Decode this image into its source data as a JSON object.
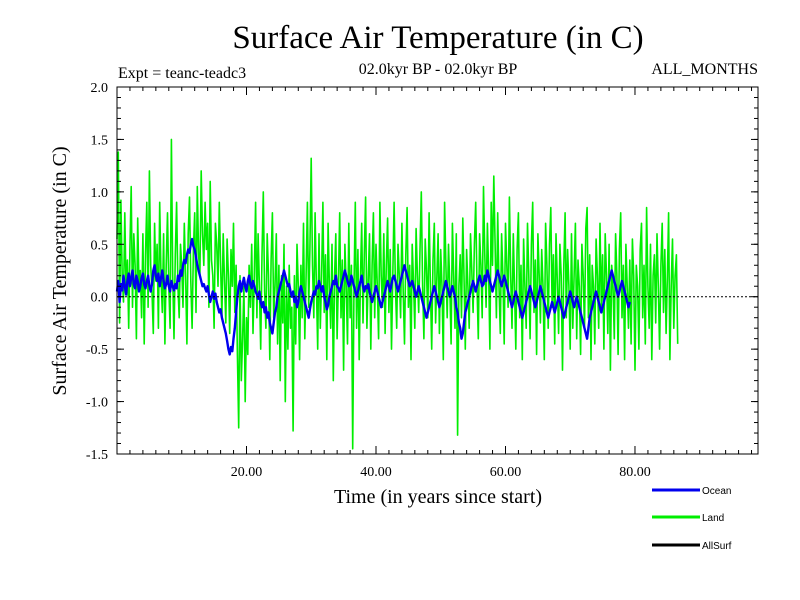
{
  "chart_data": {
    "type": "line",
    "title": "Surface Air Temperature (in C)",
    "subtitle_left": "Expt = teanc-teadc3",
    "subtitle_center": "02.0kyr BP - 02.0kyr BP",
    "subtitle_right": "ALL_MONTHS",
    "xlabel": "Time (in years since start)",
    "ylabel": "Surface Air Temperature (in C)",
    "xlim": [
      0,
      99
    ],
    "ylim": [
      -1.5,
      2.0
    ],
    "x_ticks": [
      20,
      40,
      60,
      80
    ],
    "x_tick_labels": [
      "20.00",
      "40.00",
      "60.00",
      "80.00"
    ],
    "y_ticks": [
      -1.5,
      -1.0,
      -0.5,
      0.0,
      0.5,
      1.0,
      1.5,
      2.0
    ],
    "y_tick_labels": [
      "-1.5",
      "-1.0",
      "-0.5",
      "0.0",
      "0.5",
      "1.0",
      "1.5",
      "2.0"
    ],
    "reference_line": 0.0,
    "series": [
      {
        "name": "Land",
        "color": "#00ee00",
        "x_start": 0.0,
        "x_step": 0.2,
        "values": [
          0.55,
          1.38,
          -0.25,
          0.92,
          0.2,
          -0.05,
          0.8,
          0.05,
          0.35,
          -0.3,
          0.45,
          1.05,
          -0.1,
          0.6,
          0.3,
          -0.4,
          0.75,
          0.1,
          0.25,
          -0.2,
          0.6,
          -0.45,
          0.4,
          0.9,
          -0.1,
          1.2,
          0.3,
          0.05,
          -0.35,
          0.7,
          0.15,
          0.5,
          -0.3,
          0.9,
          0.2,
          -0.15,
          0.6,
          -0.45,
          0.3,
          0.8,
          0.1,
          -0.3,
          1.5,
          0.2,
          -0.4,
          0.4,
          0.9,
          0.1,
          -0.2,
          0.5,
          0.3,
          -0.1,
          0.7,
          0.2,
          -0.45,
          0.6,
          0.95,
          0.15,
          -0.3,
          0.45,
          0.8,
          -0.15,
          1.05,
          0.4,
          0.2,
          1.2,
          0.6,
          0.3,
          0.9,
          0.45,
          0.7,
          -0.1,
          1.1,
          0.35,
          0.2,
          -0.3,
          0.7,
          0.5,
          0.1,
          0.9,
          0.3,
          -0.2,
          0.6,
          0.15,
          -0.25,
          0.55,
          0.2,
          -0.35,
          0.45,
          0.1,
          0.7,
          -0.15,
          0.3,
          -0.55,
          -1.25,
          0.2,
          -0.8,
          -0.4,
          0.1,
          -1.0,
          -0.2,
          -0.55,
          0.3,
          -0.1,
          0.5,
          -0.35,
          0.2,
          0.9,
          -0.2,
          0.6,
          0.1,
          -0.5,
          0.4,
          1.0,
          0.05,
          -0.3,
          0.6,
          0.2,
          -0.6,
          0.35,
          0.8,
          -0.2,
          0.1,
          0.6,
          -0.45,
          0.3,
          -0.8,
          0.2,
          -0.25,
          0.5,
          -1.0,
          0.1,
          -0.5,
          0.3,
          -0.3,
          -0.1,
          -1.28,
          0.2,
          -0.45,
          0.5,
          0.1,
          -0.6,
          0.3,
          -0.2,
          0.7,
          -0.4,
          0.2,
          0.9,
          -0.1,
          0.45,
          1.32,
          0.3,
          -0.2,
          0.8,
          0.1,
          -0.5,
          0.6,
          -0.3,
          0.2,
          0.9,
          -0.15,
          0.4,
          -0.6,
          0.7,
          0.1,
          -0.3,
          0.5,
          -0.8,
          0.2,
          0.6,
          -0.4,
          0.15,
          0.8,
          -0.2,
          0.35,
          -0.7,
          0.5,
          0.1,
          -0.45,
          0.7,
          -0.2,
          0.3,
          -1.45,
          0.1,
          0.9,
          -0.3,
          0.45,
          -0.6,
          0.2,
          0.7,
          -0.25,
          0.4,
          0.95,
          -0.3,
          0.15,
          0.6,
          -0.5,
          0.3,
          0.8,
          -0.2,
          0.5,
          0.1,
          -0.4,
          0.9,
          0.2,
          -0.1,
          0.6,
          -0.35,
          0.3,
          0.75,
          -0.15,
          0.45,
          -0.5,
          0.2,
          0.9,
          0.1,
          -0.3,
          0.5,
          0.2,
          -0.2,
          0.7,
          0.05,
          -0.45,
          0.4,
          0.85,
          -0.1,
          0.3,
          -0.6,
          0.5,
          0.15,
          -0.3,
          0.65,
          0.2,
          -0.15,
          0.45,
          1.0,
          0.1,
          -0.4,
          0.55,
          0.25,
          -0.2,
          0.8,
          0.1,
          -0.5,
          0.35,
          0.7,
          -0.25,
          0.2,
          0.6,
          -0.35,
          0.45,
          0.1,
          -0.6,
          0.9,
          0.3,
          -0.2,
          0.5,
          0.1,
          -0.45,
          0.7,
          0.2,
          -0.3,
          0.6,
          -1.32,
          0.1,
          0.4,
          -0.2,
          0.75,
          0.2,
          -0.5,
          0.45,
          0.1,
          -0.3,
          0.6,
          0.25,
          -0.15,
          0.5,
          0.9,
          0.1,
          -0.4,
          0.6,
          0.3,
          -0.2,
          1.05,
          0.4,
          -0.1,
          0.7,
          0.2,
          -0.5,
          0.9,
          0.3,
          1.15,
          0.5,
          -0.2,
          0.8,
          0.1,
          -0.35,
          0.6,
          0.2,
          -0.45,
          0.7,
          0.3,
          -0.1,
          0.95,
          0.2,
          -0.3,
          0.6,
          0.1,
          -0.5,
          0.45,
          0.8,
          -0.2,
          0.3,
          -0.6,
          0.55,
          0.1,
          -0.3,
          0.7,
          0.2,
          -0.4,
          0.5,
          0.9,
          -0.15,
          0.35,
          -0.55,
          0.6,
          0.2,
          -0.25,
          0.45,
          0.1,
          -0.6,
          0.7,
          0.3,
          -0.3,
          0.5,
          0.85,
          -0.1,
          0.4,
          -0.45,
          0.6,
          0.15,
          -0.35,
          0.5,
          0.2,
          -0.7,
          0.3,
          0.8,
          -0.2,
          0.45,
          0.1,
          -0.5,
          0.6,
          -0.3,
          0.2,
          0.7,
          -0.4,
          0.35,
          0.1,
          -0.55,
          0.5,
          0.2,
          -0.3,
          0.65,
          0.85,
          -0.2,
          0.4,
          -0.6,
          0.3,
          0.1,
          -0.45,
          0.55,
          0.2,
          -0.3,
          0.7,
          -0.1,
          0.4,
          -0.5,
          0.6,
          0.2,
          -0.35,
          0.5,
          -0.7,
          0.3,
          0.1,
          -0.4,
          0.6,
          0.2,
          -0.55,
          0.45,
          0.8,
          -0.2,
          0.3,
          -0.6,
          0.5,
          0.1,
          -0.3,
          0.35,
          -0.45,
          0.55,
          0.2,
          -0.7,
          0.3,
          0.1,
          -0.5,
          0.45,
          0.7,
          -0.2,
          0.3,
          -0.45,
          0.85,
          0.1,
          -0.3,
          0.5,
          -0.6,
          0.2,
          0.4,
          -0.25,
          0.6,
          0.1,
          -0.5,
          0.3,
          0.7,
          -0.15,
          0.45,
          -0.35,
          0.2,
          0.8,
          -0.6,
          0.1,
          0.55,
          -0.3,
          0.2,
          0.4,
          -0.45
        ]
      },
      {
        "name": "Ocean",
        "color": "#0000ee",
        "x_start": 0.0,
        "x_step": 0.2,
        "values": [
          0.05,
          0.15,
          -0.05,
          0.12,
          0.06,
          0.2,
          0.1,
          0.02,
          0.15,
          0.22,
          0.1,
          0.18,
          0.25,
          0.12,
          0.08,
          0.2,
          0.15,
          0.05,
          0.1,
          0.18,
          0.22,
          0.12,
          0.08,
          0.15,
          0.2,
          0.1,
          0.05,
          0.12,
          0.25,
          0.3,
          0.2,
          0.15,
          0.22,
          0.1,
          0.18,
          0.25,
          0.15,
          0.08,
          0.12,
          0.2,
          0.1,
          0.05,
          0.15,
          0.1,
          0.06,
          0.12,
          0.08,
          0.2,
          0.15,
          0.25,
          0.2,
          0.3,
          0.35,
          0.32,
          0.4,
          0.45,
          0.42,
          0.5,
          0.55,
          0.48,
          0.45,
          0.38,
          0.3,
          0.25,
          0.2,
          0.15,
          0.1,
          0.12,
          0.08,
          0.05,
          0.1,
          0.02,
          -0.05,
          0.0,
          0.05,
          -0.02,
          0.03,
          -0.05,
          -0.1,
          -0.15,
          -0.12,
          -0.2,
          -0.25,
          -0.3,
          -0.35,
          -0.42,
          -0.5,
          -0.55,
          -0.48,
          -0.52,
          -0.4,
          -0.3,
          -0.15,
          0.0,
          0.1,
          0.15,
          0.05,
          0.12,
          0.18,
          0.1,
          0.05,
          0.15,
          0.2,
          0.12,
          0.08,
          0.15,
          0.1,
          0.05,
          0.02,
          -0.02,
          0.05,
          -0.05,
          -0.1,
          -0.05,
          -0.15,
          -0.1,
          -0.2,
          -0.15,
          -0.25,
          -0.3,
          -0.35,
          -0.25,
          -0.15,
          -0.1,
          0.0,
          0.05,
          0.1,
          0.15,
          0.2,
          0.25,
          0.2,
          0.15,
          0.1,
          0.12,
          0.05,
          0.0,
          0.05,
          -0.05,
          0.0,
          -0.1,
          -0.05,
          0.05,
          0.1,
          0.05,
          0.0,
          -0.05,
          -0.1,
          -0.15,
          -0.2,
          -0.12,
          -0.05,
          0.0,
          0.05,
          0.02,
          0.1,
          0.08,
          0.15,
          0.1,
          0.05,
          0.1,
          0.0,
          -0.05,
          -0.12,
          -0.08,
          0.0,
          0.05,
          0.1,
          0.15,
          0.12,
          0.2,
          0.1,
          0.08,
          0.05,
          0.1,
          0.15,
          0.2,
          0.25,
          0.2,
          0.15,
          0.1,
          0.12,
          0.2,
          0.15,
          0.1,
          0.05,
          0.0,
          0.05,
          0.1,
          0.15,
          0.2,
          0.1,
          0.05,
          0.1,
          0.08,
          0.12,
          0.05,
          0.0,
          -0.05,
          0.0,
          0.05,
          0.1,
          0.05,
          0.0,
          -0.05,
          -0.1,
          -0.05,
          0.0,
          0.05,
          0.1,
          0.15,
          0.1,
          0.05,
          0.12,
          0.18,
          0.2,
          0.15,
          0.1,
          0.05,
          0.1,
          0.15,
          0.2,
          0.25,
          0.3,
          0.25,
          0.2,
          0.15,
          0.1,
          0.12,
          0.15,
          0.1,
          0.05,
          0.0,
          0.05,
          0.1,
          0.05,
          0.0,
          -0.05,
          -0.1,
          -0.15,
          -0.2,
          -0.15,
          -0.1,
          -0.05,
          0.0,
          0.05,
          0.1,
          0.05,
          0.0,
          -0.05,
          -0.1,
          -0.05,
          0.0,
          0.05,
          0.1,
          0.15,
          0.1,
          0.05,
          0.0,
          0.05,
          0.1,
          0.05,
          0.0,
          -0.1,
          -0.15,
          -0.25,
          -0.3,
          -0.4,
          -0.35,
          -0.25,
          -0.15,
          -0.1,
          -0.05,
          0.0,
          0.05,
          0.1,
          0.15,
          0.1,
          0.05,
          0.1,
          0.15,
          0.2,
          0.15,
          0.1,
          0.12,
          0.2,
          0.15,
          0.25,
          0.2,
          0.15,
          0.1,
          0.05,
          0.1,
          0.15,
          0.2,
          0.25,
          0.2,
          0.15,
          0.1,
          0.15,
          0.2,
          0.15,
          0.1,
          0.05,
          0.0,
          -0.05,
          -0.1,
          -0.05,
          0.0,
          0.05,
          0.0,
          -0.05,
          -0.1,
          -0.15,
          -0.2,
          -0.15,
          -0.1,
          -0.05,
          0.0,
          0.05,
          0.1,
          0.05,
          0.0,
          -0.05,
          -0.1,
          -0.05,
          0.0,
          0.05,
          0.1,
          0.05,
          0.0,
          -0.05,
          -0.1,
          -0.15,
          -0.2,
          -0.15,
          -0.1,
          -0.05,
          -0.1,
          -0.15,
          -0.1,
          -0.05,
          0.0,
          -0.05,
          -0.1,
          -0.15,
          -0.2,
          -0.15,
          -0.1,
          -0.05,
          0.0,
          0.05,
          0.0,
          -0.05,
          -0.1,
          -0.05,
          0.0,
          -0.05,
          -0.1,
          -0.15,
          -0.2,
          -0.25,
          -0.3,
          -0.35,
          -0.4,
          -0.3,
          -0.2,
          -0.15,
          -0.1,
          -0.05,
          0.0,
          0.05,
          0.0,
          -0.05,
          -0.1,
          -0.15,
          -0.1,
          -0.05,
          0.0,
          0.05,
          0.1,
          0.15,
          0.2,
          0.25,
          0.2,
          0.15,
          0.1,
          0.05,
          0.0,
          0.05,
          0.1,
          0.15,
          0.1,
          0.05,
          0.0,
          -0.05,
          -0.1,
          -0.05
        ]
      },
      {
        "name": "AllSurf",
        "color": "#000000",
        "x_start": 0.0,
        "x_step": 0.2,
        "values": []
      }
    ],
    "legend": {
      "position": "bottom-right",
      "entries": [
        "Ocean",
        "Land",
        "AllSurf"
      ]
    }
  }
}
